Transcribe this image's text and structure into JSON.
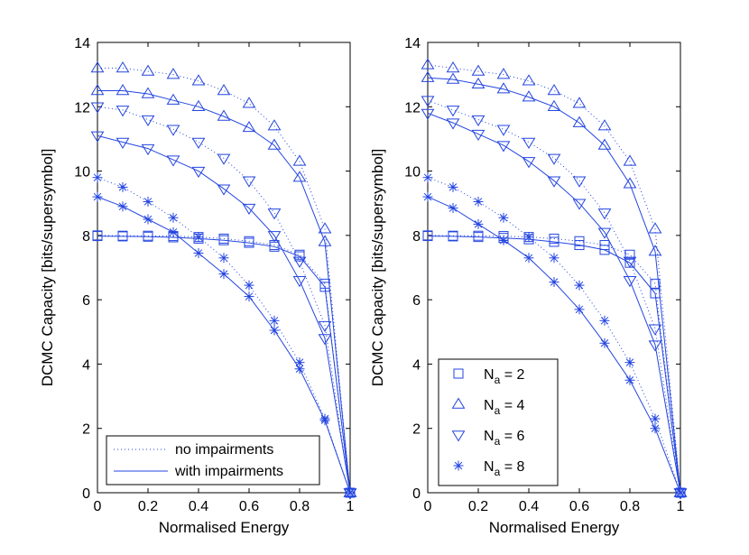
{
  "chart_data": [
    {
      "type": "line",
      "xlabel": "Normalised Energy",
      "ylabel": "DCMC Capacity [bits/supersymbol]",
      "xlim": [
        0,
        1
      ],
      "ylim": [
        0,
        14
      ],
      "x_ticks": [
        "0",
        "0.2",
        "0.4",
        "0.6",
        "0.8",
        "1"
      ],
      "y_ticks": [
        "0",
        "2",
        "4",
        "6",
        "8",
        "10",
        "12",
        "14"
      ],
      "grid": false,
      "color": "#2345e0",
      "legend": {
        "position": "bottom-left",
        "entries": [
          {
            "label": "no impairments",
            "line": "dotted"
          },
          {
            "label": "with impairments",
            "line": "solid"
          }
        ]
      },
      "series": [
        {
          "marker": "square",
          "line": "dotted",
          "x": [
            0,
            0.1,
            0.2,
            0.3,
            0.4,
            0.5,
            0.6,
            0.7,
            0.8,
            0.9,
            1
          ],
          "y": [
            8.0,
            7.99,
            7.99,
            7.98,
            7.95,
            7.9,
            7.82,
            7.7,
            7.4,
            6.5,
            0
          ]
        },
        {
          "marker": "square",
          "line": "solid",
          "x": [
            0,
            0.1,
            0.2,
            0.3,
            0.4,
            0.5,
            0.6,
            0.7,
            0.8,
            0.9,
            1
          ],
          "y": [
            7.98,
            7.97,
            7.96,
            7.94,
            7.9,
            7.85,
            7.77,
            7.65,
            7.35,
            6.4,
            0
          ]
        },
        {
          "marker": "triangle-up",
          "line": "dotted",
          "x": [
            0,
            0.1,
            0.2,
            0.3,
            0.4,
            0.5,
            0.6,
            0.7,
            0.8,
            0.9,
            1
          ],
          "y": [
            13.2,
            13.2,
            13.1,
            13.0,
            12.8,
            12.5,
            12.1,
            11.4,
            10.3,
            8.2,
            0
          ]
        },
        {
          "marker": "triangle-up",
          "line": "solid",
          "x": [
            0,
            0.1,
            0.2,
            0.3,
            0.4,
            0.5,
            0.6,
            0.7,
            0.8,
            0.9,
            1
          ],
          "y": [
            12.5,
            12.5,
            12.4,
            12.2,
            12.0,
            11.7,
            11.35,
            10.8,
            9.8,
            7.8,
            0
          ]
        },
        {
          "marker": "triangle-down",
          "line": "dotted",
          "x": [
            0,
            0.1,
            0.2,
            0.3,
            0.4,
            0.5,
            0.6,
            0.7,
            0.8,
            0.9,
            1
          ],
          "y": [
            12.0,
            11.9,
            11.6,
            11.3,
            10.9,
            10.4,
            9.7,
            8.7,
            7.2,
            5.2,
            0
          ]
        },
        {
          "marker": "triangle-down",
          "line": "solid",
          "x": [
            0,
            0.1,
            0.2,
            0.3,
            0.4,
            0.5,
            0.6,
            0.7,
            0.8,
            0.9,
            1
          ],
          "y": [
            11.1,
            10.9,
            10.7,
            10.35,
            10.0,
            9.45,
            8.85,
            8.0,
            6.6,
            4.8,
            0
          ]
        },
        {
          "marker": "star",
          "line": "dotted",
          "x": [
            0,
            0.1,
            0.2,
            0.3,
            0.4,
            0.5,
            0.6,
            0.7,
            0.8,
            0.9,
            1
          ],
          "y": [
            9.8,
            9.5,
            9.05,
            8.55,
            7.95,
            7.3,
            6.45,
            5.35,
            4.05,
            2.3,
            0
          ]
        },
        {
          "marker": "star",
          "line": "solid",
          "x": [
            0,
            0.1,
            0.2,
            0.3,
            0.4,
            0.5,
            0.6,
            0.7,
            0.8,
            0.9,
            1
          ],
          "y": [
            9.2,
            8.9,
            8.5,
            8.1,
            7.45,
            6.8,
            6.1,
            5.05,
            3.85,
            2.25,
            0
          ]
        }
      ]
    },
    {
      "type": "line",
      "xlabel": "Normalised Energy",
      "ylabel": "DCMC Capacity [bits/supersymbol]",
      "xlim": [
        0,
        1
      ],
      "ylim": [
        0,
        14
      ],
      "x_ticks": [
        "0",
        "0.2",
        "0.4",
        "0.6",
        "0.8",
        "1"
      ],
      "y_ticks": [
        "0",
        "2",
        "4",
        "6",
        "8",
        "10",
        "12",
        "14"
      ],
      "grid": false,
      "color": "#2345e0",
      "legend": {
        "position": "bottom-left",
        "entries": [
          {
            "marker": "square",
            "label": "N",
            "sub": "a",
            "suffix": " = 2"
          },
          {
            "marker": "triangle-up",
            "label": "N",
            "sub": "a",
            "suffix": " = 4"
          },
          {
            "marker": "triangle-down",
            "label": "N",
            "sub": "a",
            "suffix": " = 6"
          },
          {
            "marker": "star",
            "label": "N",
            "sub": "a",
            "suffix": " = 8"
          }
        ]
      },
      "series": [
        {
          "marker": "square",
          "line": "dotted",
          "x": [
            0,
            0.1,
            0.2,
            0.3,
            0.4,
            0.5,
            0.6,
            0.7,
            0.8,
            0.9,
            1
          ],
          "y": [
            8.0,
            7.99,
            7.99,
            7.98,
            7.95,
            7.9,
            7.82,
            7.7,
            7.4,
            6.5,
            0
          ]
        },
        {
          "marker": "square",
          "line": "solid",
          "x": [
            0,
            0.1,
            0.2,
            0.3,
            0.4,
            0.5,
            0.6,
            0.7,
            0.8,
            0.9,
            1
          ],
          "y": [
            7.98,
            7.97,
            7.95,
            7.92,
            7.88,
            7.8,
            7.7,
            7.55,
            7.15,
            6.2,
            0
          ]
        },
        {
          "marker": "triangle-up",
          "line": "dotted",
          "x": [
            0,
            0.1,
            0.2,
            0.3,
            0.4,
            0.5,
            0.6,
            0.7,
            0.8,
            0.9,
            1
          ],
          "y": [
            13.3,
            13.2,
            13.1,
            13.0,
            12.8,
            12.5,
            12.1,
            11.4,
            10.3,
            8.2,
            0
          ]
        },
        {
          "marker": "triangle-up",
          "line": "solid",
          "x": [
            0,
            0.1,
            0.2,
            0.3,
            0.4,
            0.5,
            0.6,
            0.7,
            0.8,
            0.9,
            1
          ],
          "y": [
            12.9,
            12.85,
            12.7,
            12.55,
            12.3,
            12.0,
            11.5,
            10.8,
            9.6,
            7.5,
            0
          ]
        },
        {
          "marker": "triangle-down",
          "line": "dotted",
          "x": [
            0,
            0.1,
            0.2,
            0.3,
            0.4,
            0.5,
            0.6,
            0.7,
            0.8,
            0.9,
            1
          ],
          "y": [
            12.2,
            11.9,
            11.6,
            11.3,
            10.9,
            10.4,
            9.7,
            8.7,
            7.2,
            5.1,
            0
          ]
        },
        {
          "marker": "triangle-down",
          "line": "solid",
          "x": [
            0,
            0.1,
            0.2,
            0.3,
            0.4,
            0.5,
            0.6,
            0.7,
            0.8,
            0.9,
            1
          ],
          "y": [
            11.8,
            11.5,
            11.15,
            10.8,
            10.3,
            9.7,
            9.0,
            8.1,
            6.6,
            4.6,
            0
          ]
        },
        {
          "marker": "star",
          "line": "dotted",
          "x": [
            0,
            0.1,
            0.2,
            0.3,
            0.4,
            0.5,
            0.6,
            0.7,
            0.8,
            0.9,
            1
          ],
          "y": [
            9.8,
            9.5,
            9.05,
            8.55,
            7.95,
            7.3,
            6.45,
            5.35,
            4.05,
            2.3,
            0
          ]
        },
        {
          "marker": "star",
          "line": "solid",
          "x": [
            0,
            0.1,
            0.2,
            0.3,
            0.4,
            0.5,
            0.6,
            0.7,
            0.8,
            0.9,
            1
          ],
          "y": [
            9.2,
            8.85,
            8.35,
            7.85,
            7.3,
            6.55,
            5.7,
            4.65,
            3.5,
            2.0,
            0
          ]
        }
      ]
    }
  ]
}
